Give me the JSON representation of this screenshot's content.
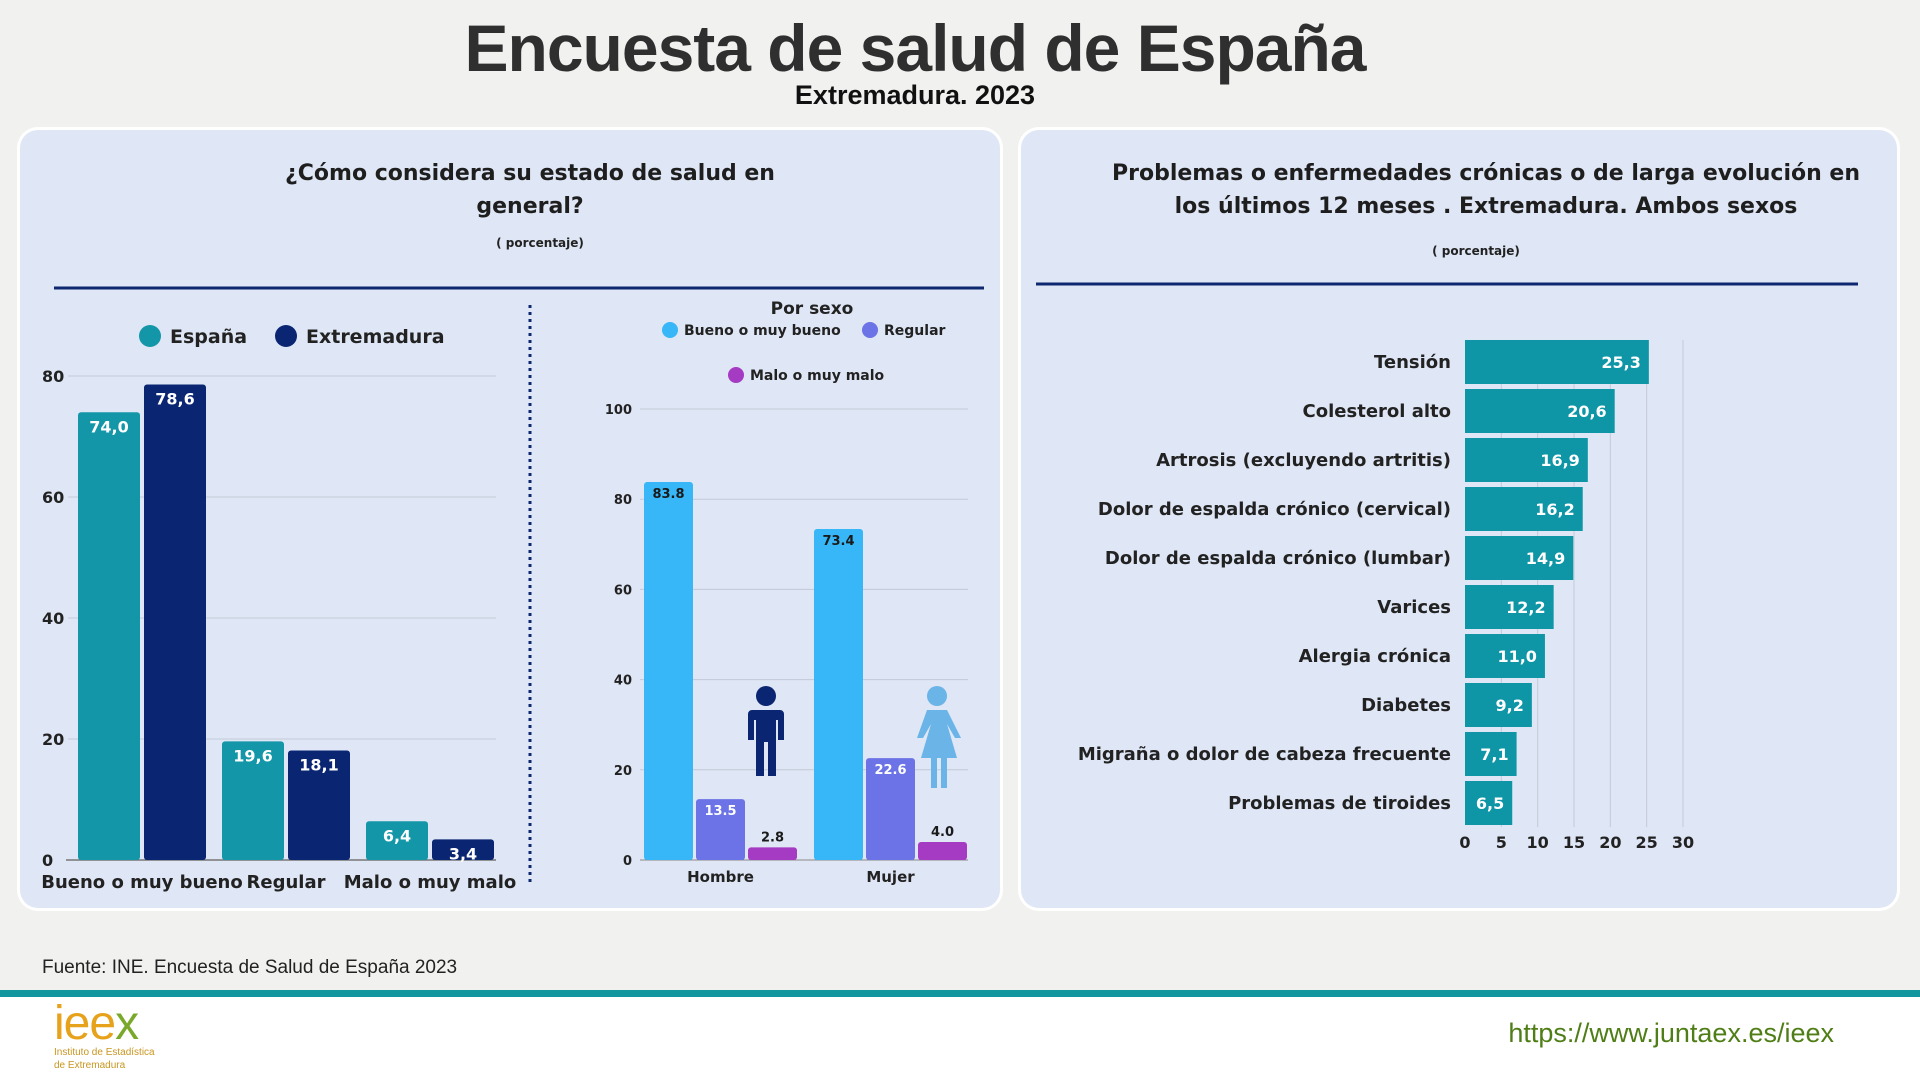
{
  "header": {
    "title": "Encuesta de salud de España",
    "subtitle": "Extremadura. 2023"
  },
  "colors": {
    "espana": "#1296a8",
    "extremadura": "#0a2572",
    "bueno": "#37b7f7",
    "regular": "#6b73e6",
    "malo": "#a53ac3",
    "bar_right": "#0e95a6",
    "rule": "#0d2870",
    "hombre_icon": "#0a2572",
    "mujer_icon": "#6ab4e8"
  },
  "chart_data": [
    {
      "type": "bar",
      "title": "¿Cómo considera su estado de salud en general?",
      "title_lines": [
        "¿Cómo considera su estado de salud en",
        "general?"
      ],
      "subtitle": "( porcentaje)",
      "categories": [
        "Bueno o muy bueno",
        "Regular",
        "Malo o muy malo"
      ],
      "series": [
        {
          "name": "España",
          "values": [
            74.0,
            19.6,
            6.4
          ],
          "labels": [
            "74,0",
            "19,6",
            "6,4"
          ]
        },
        {
          "name": "Extremadura",
          "values": [
            78.6,
            18.1,
            3.4
          ],
          "labels": [
            "78,6",
            "18,1",
            "3,4"
          ]
        }
      ],
      "ylim": [
        0,
        80
      ],
      "yticks": [
        "0",
        "20",
        "40",
        "60",
        "80"
      ],
      "legend": "top",
      "grid": true
    },
    {
      "type": "bar",
      "title": "Por sexo",
      "categories": [
        "Hombre",
        "Mujer"
      ],
      "series": [
        {
          "name": "Bueno o muy bueno",
          "values": [
            83.8,
            73.4
          ],
          "labels": [
            "83.8",
            "73.4"
          ]
        },
        {
          "name": "Regular",
          "values": [
            13.5,
            22.6
          ],
          "labels": [
            "13.5",
            "22.6"
          ]
        },
        {
          "name": "Malo o muy malo",
          "values": [
            2.8,
            4.0
          ],
          "labels": [
            "2.8",
            "4.0"
          ]
        }
      ],
      "ylim": [
        0,
        100
      ],
      "yticks": [
        "0",
        "20",
        "40",
        "60",
        "80",
        "100"
      ],
      "legend": "top",
      "grid": true
    },
    {
      "type": "bar",
      "orientation": "horizontal",
      "title": "Problemas o enfermedades crónicas o de larga evolución en los últimos 12 meses . Extremadura. Ambos sexos",
      "title_lines": [
        "Problemas o enfermedades crónicas o de larga evolución en",
        "los últimos 12 meses . Extremadura. Ambos sexos"
      ],
      "subtitle": "( porcentaje)",
      "categories": [
        "Tensión",
        "Colesterol alto",
        "Artrosis (excluyendo artritis)",
        "Dolor de espalda crónico (cervical)",
        "Dolor de espalda crónico (lumbar)",
        "Varices",
        "Alergia crónica",
        "Diabetes",
        "Migraña o dolor de cabeza frecuente",
        "Problemas de tiroides"
      ],
      "values": [
        25.3,
        20.6,
        16.9,
        16.2,
        14.9,
        12.2,
        11.0,
        9.2,
        7.1,
        6.5
      ],
      "labels": [
        "25,3",
        "20,6",
        "16,9",
        "16,2",
        "14,9",
        "12,2",
        "11,0",
        "9,2",
        "7,1",
        "6,5"
      ],
      "xlim": [
        0,
        30
      ],
      "xticks": [
        "0",
        "5",
        "10",
        "15",
        "20",
        "25",
        "30"
      ],
      "grid": true
    }
  ],
  "footer": {
    "source": "Fuente: INE. Encuesta de Salud de España 2023",
    "logo_text": "ieex",
    "logo_sub1": "Instituto de Estadística",
    "logo_sub2": "de Extremadura",
    "url": "https://www.juntaex.es/ieex"
  }
}
